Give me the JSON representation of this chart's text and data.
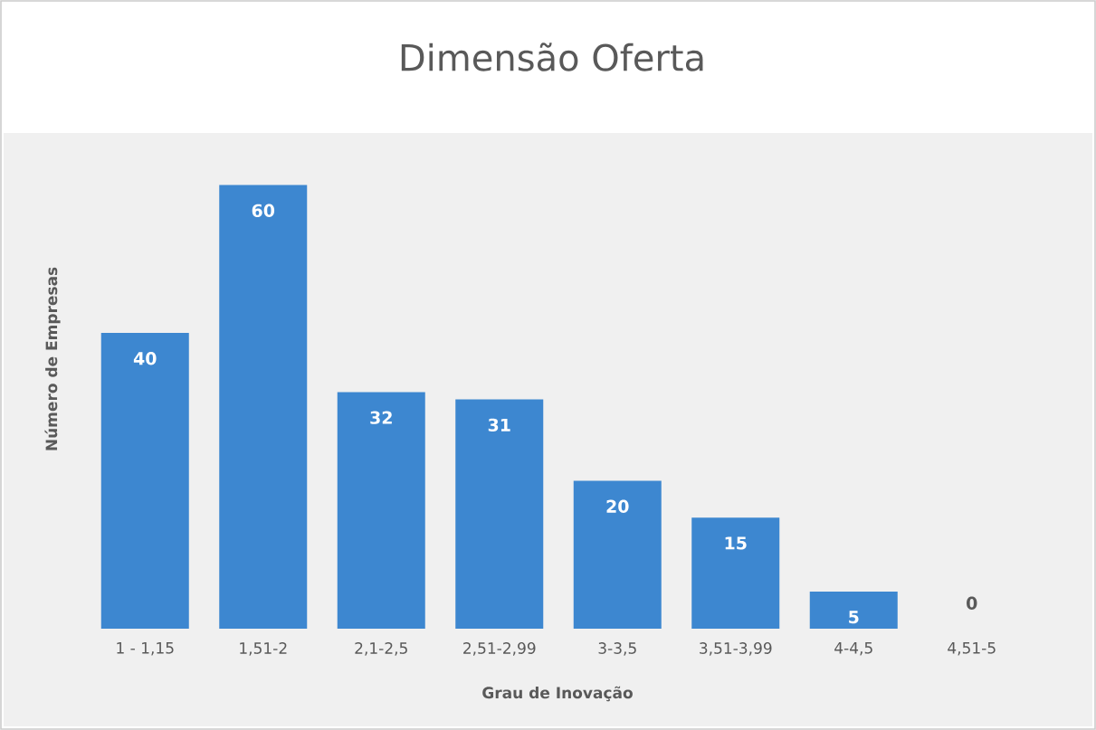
{
  "chart_data": {
    "type": "bar",
    "title": "Dimensão Oferta",
    "xlabel": "Grau de Inovação",
    "ylabel": "Número de Empresas",
    "categories": [
      "1 - 1,15",
      "1,51-2",
      "2,1-2,5",
      "2,51-2,99",
      "3-3,5",
      "3,51-3,99",
      "4-4,5",
      "4,51-5"
    ],
    "values": [
      40,
      60,
      32,
      31,
      20,
      15,
      5,
      0
    ],
    "color": "#3d87d0",
    "data_labels": true
  }
}
